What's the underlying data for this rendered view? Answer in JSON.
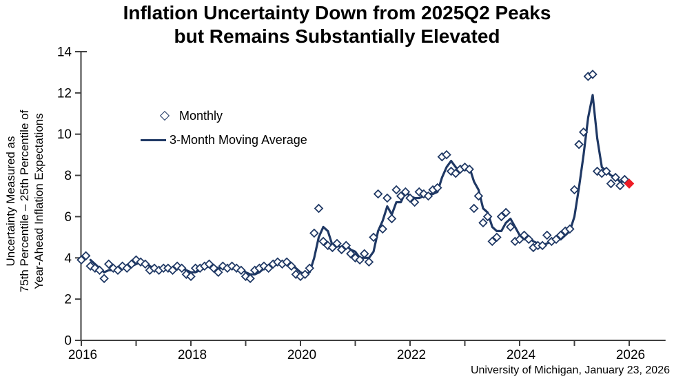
{
  "title": {
    "line1": "Inflation Uncertainty Down from 2025Q2 Peaks",
    "line2": "but Remains Substantially Elevated"
  },
  "y_axis": {
    "label_lines": [
      "Uncertainty Measured as",
      "75th Percentile – 25th Percentile of",
      "Year-Ahead Inflation Expectations"
    ]
  },
  "legend": {
    "monthly_label": "Monthly",
    "moving_average_label": "3-Month Moving Average"
  },
  "source": {
    "text": "University of Michigan, January 23, 2026"
  },
  "colors": {
    "navy": "#1F3864",
    "red": "#EE1C25",
    "axis": "#3f3f3f",
    "text": "#000000",
    "background": "#FFFFFF"
  },
  "chart_data": {
    "type": "line",
    "title": "Inflation Uncertainty Down from 2025Q2 Peaks but Remains Substantially Elevated",
    "ylabel": "Uncertainty Measured as 75th Percentile – 25th Percentile of Year-Ahead Inflation Expectations",
    "xlabel": "",
    "frequency": "monthly",
    "x_start": "2016-01",
    "x_end": "2026-01",
    "ylim": [
      0,
      14
    ],
    "xlim": [
      2015.85,
      2026.5
    ],
    "y_ticks": [
      0,
      2,
      4,
      6,
      8,
      10,
      12,
      14
    ],
    "x_ticks": [
      2016,
      2017,
      2018,
      2019,
      2020,
      2021,
      2022,
      2023,
      2024,
      2025,
      2026
    ],
    "x_tick_labels": [
      "2016",
      "",
      "2018",
      "",
      "2020",
      "",
      "2022",
      "",
      "2024",
      "",
      "2026"
    ],
    "grid": false,
    "legend_position": "inside-upper-left",
    "series": [
      {
        "name": "Monthly",
        "type": "scatter",
        "marker": "diamond-open",
        "color": "#1F3864",
        "values": [
          3.9,
          4.1,
          3.6,
          3.5,
          3.4,
          3.0,
          3.7,
          3.5,
          3.4,
          3.6,
          3.5,
          3.7,
          3.9,
          3.8,
          3.7,
          3.4,
          3.5,
          3.4,
          3.5,
          3.5,
          3.4,
          3.6,
          3.5,
          3.2,
          3.1,
          3.5,
          3.5,
          3.6,
          3.7,
          3.5,
          3.3,
          3.6,
          3.5,
          3.6,
          3.5,
          3.4,
          3.1,
          3.0,
          3.4,
          3.5,
          3.6,
          3.5,
          3.7,
          3.8,
          3.7,
          3.8,
          3.6,
          3.2,
          3.1,
          3.2,
          3.5,
          5.2,
          6.4,
          4.8,
          4.6,
          4.5,
          4.7,
          4.4,
          4.6,
          4.2,
          4.0,
          3.9,
          4.2,
          3.8,
          5.0,
          7.1,
          5.4,
          6.9,
          5.9,
          7.3,
          7.0,
          7.2,
          6.9,
          6.7,
          7.2,
          7.1,
          7.0,
          7.3,
          7.4,
          8.9,
          9.0,
          8.2,
          8.1,
          8.3,
          8.4,
          8.3,
          6.4,
          7.0,
          5.7,
          6.0,
          4.8,
          5.0,
          6.0,
          6.2,
          5.5,
          4.8,
          4.9,
          5.1,
          4.9,
          4.5,
          4.6,
          4.6,
          5.1,
          4.8,
          4.9,
          5.1,
          5.3,
          5.4,
          7.3,
          9.5,
          10.1,
          12.8,
          12.9,
          8.2,
          8.1,
          8.2,
          7.6,
          7.9,
          7.5,
          7.8,
          7.6
        ]
      },
      {
        "name": "3-Month Moving Average",
        "type": "line",
        "color": "#1F3864",
        "values": [
          null,
          null,
          3.9,
          3.7,
          3.5,
          3.3,
          3.4,
          3.4,
          3.5,
          3.5,
          3.5,
          3.6,
          3.7,
          3.8,
          3.8,
          3.6,
          3.5,
          3.4,
          3.5,
          3.5,
          3.5,
          3.5,
          3.5,
          3.4,
          3.3,
          3.3,
          3.4,
          3.5,
          3.6,
          3.6,
          3.5,
          3.5,
          3.5,
          3.6,
          3.5,
          3.5,
          3.3,
          3.2,
          3.2,
          3.3,
          3.5,
          3.5,
          3.6,
          3.7,
          3.7,
          3.8,
          3.7,
          3.5,
          3.3,
          3.2,
          3.3,
          4.0,
          5.0,
          5.5,
          5.3,
          4.6,
          4.6,
          4.5,
          4.6,
          4.4,
          4.3,
          4.0,
          4.0,
          4.0,
          4.3,
          5.3,
          5.8,
          6.5,
          6.1,
          6.7,
          6.7,
          7.2,
          7.0,
          6.9,
          6.9,
          7.0,
          7.1,
          7.1,
          7.2,
          7.9,
          8.4,
          8.7,
          8.4,
          8.2,
          8.3,
          8.4,
          7.7,
          7.3,
          6.4,
          6.2,
          5.5,
          5.3,
          5.3,
          5.7,
          5.9,
          5.5,
          5.1,
          4.9,
          5.0,
          4.8,
          4.7,
          4.6,
          4.7,
          4.8,
          4.9,
          4.9,
          5.1,
          5.3,
          6.0,
          7.4,
          9.0,
          10.8,
          11.9,
          9.8,
          8.4,
          8.2,
          8.0,
          7.9,
          7.7,
          7.7,
          7.6
        ]
      }
    ],
    "highlight_last_point": {
      "x": "2026-01",
      "value": 7.6,
      "marker": "diamond-filled",
      "color": "#EE1C25"
    }
  }
}
